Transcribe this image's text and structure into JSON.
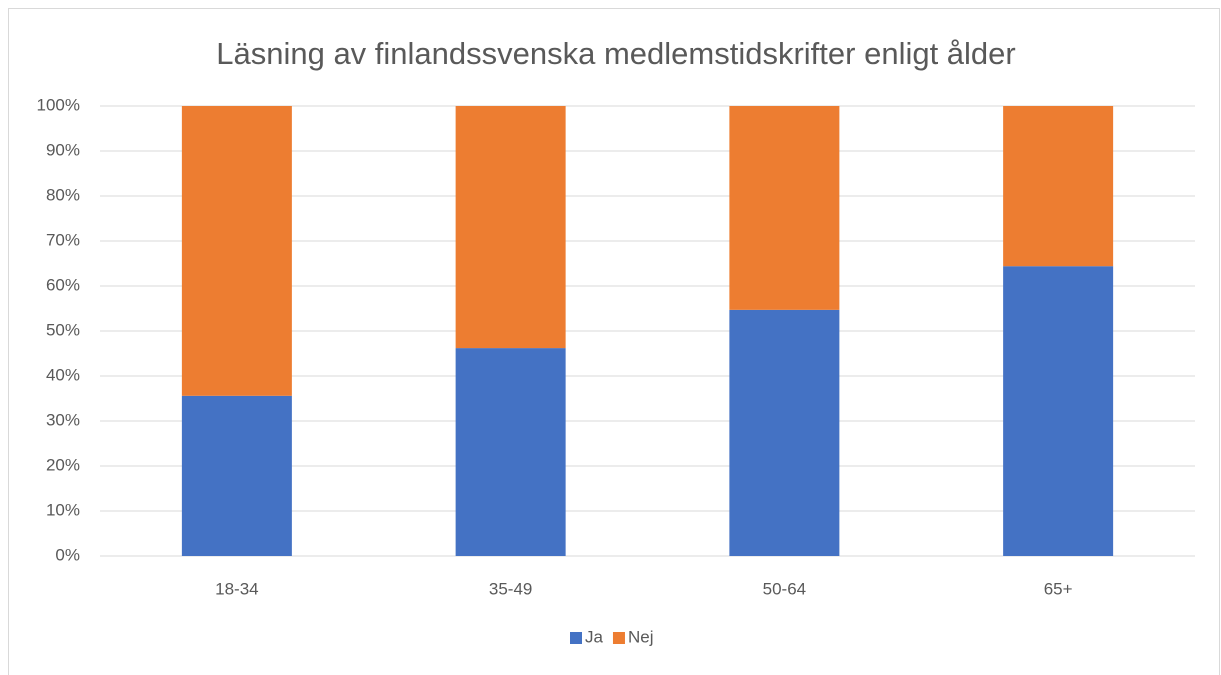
{
  "chart_data": {
    "type": "stacked_bar",
    "title": "Läsning av finlandssvenska medlemstidskrifter enligt ålder",
    "categories": [
      "18-34",
      "35-49",
      "50-64",
      "65+"
    ],
    "series": [
      {
        "name": "Ja",
        "color": "#4472c4",
        "values": [
          35.6,
          46.2,
          54.7,
          64.4
        ]
      },
      {
        "name": "Nej",
        "color": "#ed7d31",
        "values": [
          64.4,
          53.8,
          45.3,
          35.6
        ]
      }
    ],
    "ylim": [
      0,
      100
    ],
    "yticks": [
      {
        "value": 0,
        "label": "0%"
      },
      {
        "value": 10,
        "label": "10%"
      },
      {
        "value": 20,
        "label": "20%"
      },
      {
        "value": 30,
        "label": "30%"
      },
      {
        "value": 40,
        "label": "40%"
      },
      {
        "value": 50,
        "label": "50%"
      },
      {
        "value": 60,
        "label": "60%"
      },
      {
        "value": 70,
        "label": "70%"
      },
      {
        "value": 80,
        "label": "80%"
      },
      {
        "value": 90,
        "label": "90%"
      },
      {
        "value": 100,
        "label": "100%"
      }
    ],
    "grid": true,
    "legend": "bottom"
  }
}
